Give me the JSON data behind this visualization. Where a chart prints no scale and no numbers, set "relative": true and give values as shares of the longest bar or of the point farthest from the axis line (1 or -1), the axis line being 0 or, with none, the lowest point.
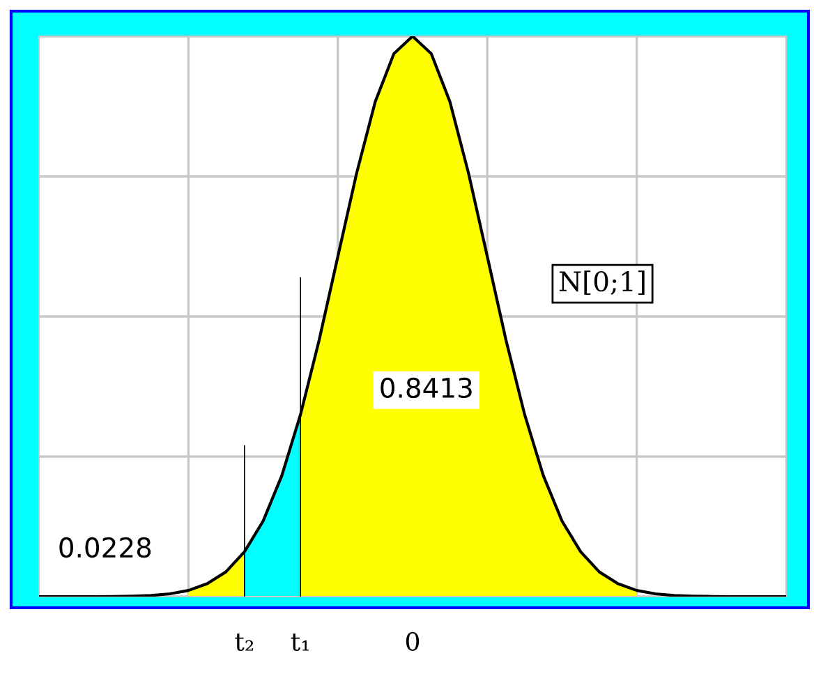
{
  "chart_data": {
    "type": "area",
    "relative": true,
    "categories": [
      null,
      null,
      null,
      null,
      null,
      null,
      null,
      null,
      null,
      null,
      null,
      "t₂",
      null,
      null,
      "t₁",
      null,
      null,
      null,
      null,
      null,
      "0",
      null,
      null,
      null,
      null,
      null,
      null,
      null,
      null,
      null,
      null,
      null,
      null,
      null,
      null,
      null,
      null,
      null,
      null,
      null,
      null
    ],
    "tick_labels": "x",
    "grid": true,
    "legend": false,
    "series": [
      {
        "color": "#ffff00",
        "values": [
          null,
          null,
          null,
          null,
          null,
          null,
          null,
          null,
          0.011,
          0.023,
          0.044,
          0.08,
          null,
          null,
          null,
          null,
          null,
          null,
          null,
          null,
          null,
          null,
          null,
          null,
          null,
          null,
          null,
          null,
          null,
          null,
          null,
          null,
          null,
          null,
          null,
          null,
          null,
          null,
          null,
          null,
          null
        ]
      },
      {
        "color": "#00ffff",
        "values": [
          null,
          null,
          null,
          null,
          null,
          null,
          null,
          null,
          null,
          null,
          null,
          0.08,
          0.135,
          0.216,
          0.325,
          null,
          null,
          null,
          null,
          null,
          null,
          null,
          null,
          null,
          null,
          null,
          null,
          null,
          null,
          null,
          null,
          null,
          null,
          null,
          null,
          null,
          null,
          null,
          null,
          null,
          null
        ]
      },
      {
        "color": "#ffff00",
        "values": [
          null,
          null,
          null,
          null,
          null,
          null,
          null,
          null,
          null,
          null,
          null,
          null,
          null,
          null,
          0.325,
          0.458,
          0.607,
          0.755,
          0.883,
          0.969,
          1,
          0.969,
          0.883,
          0.755,
          0.607,
          0.458,
          0.325,
          0.216,
          0.135,
          0.08,
          0.044,
          0.023,
          0.011,
          null,
          null,
          null,
          null,
          null,
          null,
          null,
          null
        ]
      },
      {
        "type": "line",
        "color": "#000000",
        "values": [
          0,
          0,
          0,
          0,
          0.0003,
          0.0009,
          0.002,
          0.005,
          0.011,
          0.023,
          0.044,
          0.08,
          0.135,
          0.216,
          0.325,
          0.458,
          0.607,
          0.755,
          0.883,
          0.969,
          1,
          0.969,
          0.883,
          0.755,
          0.607,
          0.458,
          0.325,
          0.216,
          0.135,
          0.08,
          0.044,
          0.023,
          0.011,
          0.005,
          0.002,
          0.0009,
          0.0003,
          0,
          0,
          0,
          0
        ]
      },
      {
        "type": "bar",
        "color": "#000000",
        "values": [
          null,
          null,
          null,
          null,
          null,
          null,
          null,
          null,
          null,
          null,
          null,
          0.27,
          null,
          null,
          0.57,
          null,
          null,
          null,
          null,
          null,
          null,
          null,
          null,
          null,
          null,
          null,
          null,
          null,
          null,
          null,
          null,
          null,
          null,
          null,
          null,
          null,
          null,
          null,
          null,
          null,
          null
        ]
      }
    ],
    "annotations": [
      "0.0228",
      "0.8413",
      "N[0;1]"
    ]
  }
}
